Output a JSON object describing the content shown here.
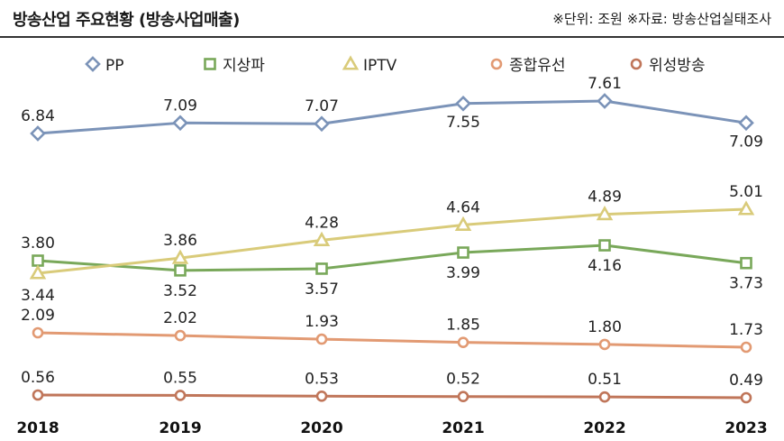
{
  "header": {
    "title": "방송산업 주요현황 (방송사업매출)",
    "note": "※단위: 조원 ※자료: 방송산업실태조사"
  },
  "chart_data": {
    "type": "line",
    "title": "방송산업 주요현황 (방송사업매출)",
    "unit": "조원",
    "source": "방송산업실태조사",
    "categories": [
      "2018",
      "2019",
      "2020",
      "2021",
      "2022",
      "2023"
    ],
    "series": [
      {
        "name": "PP",
        "values": [
          6.84,
          7.09,
          7.07,
          7.55,
          7.61,
          7.09
        ],
        "color": "#7b93b8",
        "marker": "diamond"
      },
      {
        "name": "지상파",
        "values": [
          3.8,
          3.52,
          3.57,
          3.99,
          4.16,
          3.73
        ],
        "color": "#79a85a",
        "marker": "square"
      },
      {
        "name": "IPTV",
        "values": [
          3.44,
          3.86,
          4.28,
          4.64,
          4.89,
          5.01
        ],
        "color": "#d9cb7a",
        "marker": "triangle"
      },
      {
        "name": "종합유선",
        "values": [
          2.09,
          2.02,
          1.93,
          1.85,
          1.8,
          1.73
        ],
        "color": "#e29a73",
        "marker": "circle"
      },
      {
        "name": "위성방송",
        "values": [
          0.56,
          0.55,
          0.53,
          0.52,
          0.51,
          0.49
        ],
        "color": "#c0765a",
        "marker": "circle"
      }
    ],
    "legend_position": "top",
    "grid": false
  }
}
